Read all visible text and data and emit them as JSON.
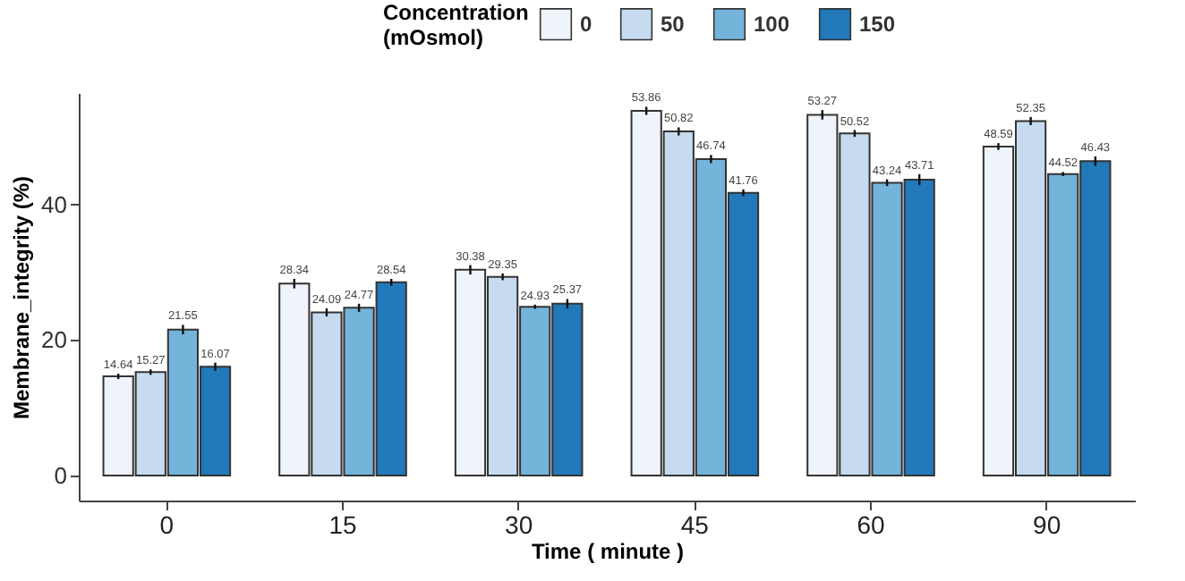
{
  "chart_data": {
    "type": "bar",
    "xlabel": "Time ( minute )",
    "ylabel": "Membrane_integrity (%)",
    "legend_title": "Concentration\n(mOsmol)",
    "legend": "top",
    "grid": false,
    "data_labels": true,
    "categories": [
      "0",
      "15",
      "30",
      "45",
      "60",
      "90"
    ],
    "ylim": [
      -3.7,
      56.5
    ],
    "yticks": [
      0,
      20,
      40
    ],
    "series": [
      {
        "name": "0",
        "color": "#eff3fa",
        "values": [
          14.64,
          28.34,
          30.38,
          53.86,
          53.27,
          48.59
        ],
        "errors": [
          0.4,
          0.7,
          0.7,
          0.6,
          0.7,
          0.5
        ]
      },
      {
        "name": "50",
        "color": "#c6dbef",
        "values": [
          15.27,
          24.09,
          29.35,
          50.82,
          50.52,
          52.35
        ],
        "errors": [
          0.4,
          0.6,
          0.5,
          0.6,
          0.5,
          0.6
        ]
      },
      {
        "name": "100",
        "color": "#74b3da",
        "values": [
          21.55,
          24.77,
          24.93,
          46.74,
          43.24,
          44.52
        ],
        "errors": [
          0.7,
          0.6,
          0.3,
          0.6,
          0.5,
          0.3
        ]
      },
      {
        "name": "150",
        "color": "#2179ba",
        "values": [
          16.07,
          28.54,
          25.37,
          41.76,
          43.71,
          46.43
        ],
        "errors": [
          0.6,
          0.5,
          0.7,
          0.5,
          0.8,
          0.7
        ]
      }
    ]
  }
}
